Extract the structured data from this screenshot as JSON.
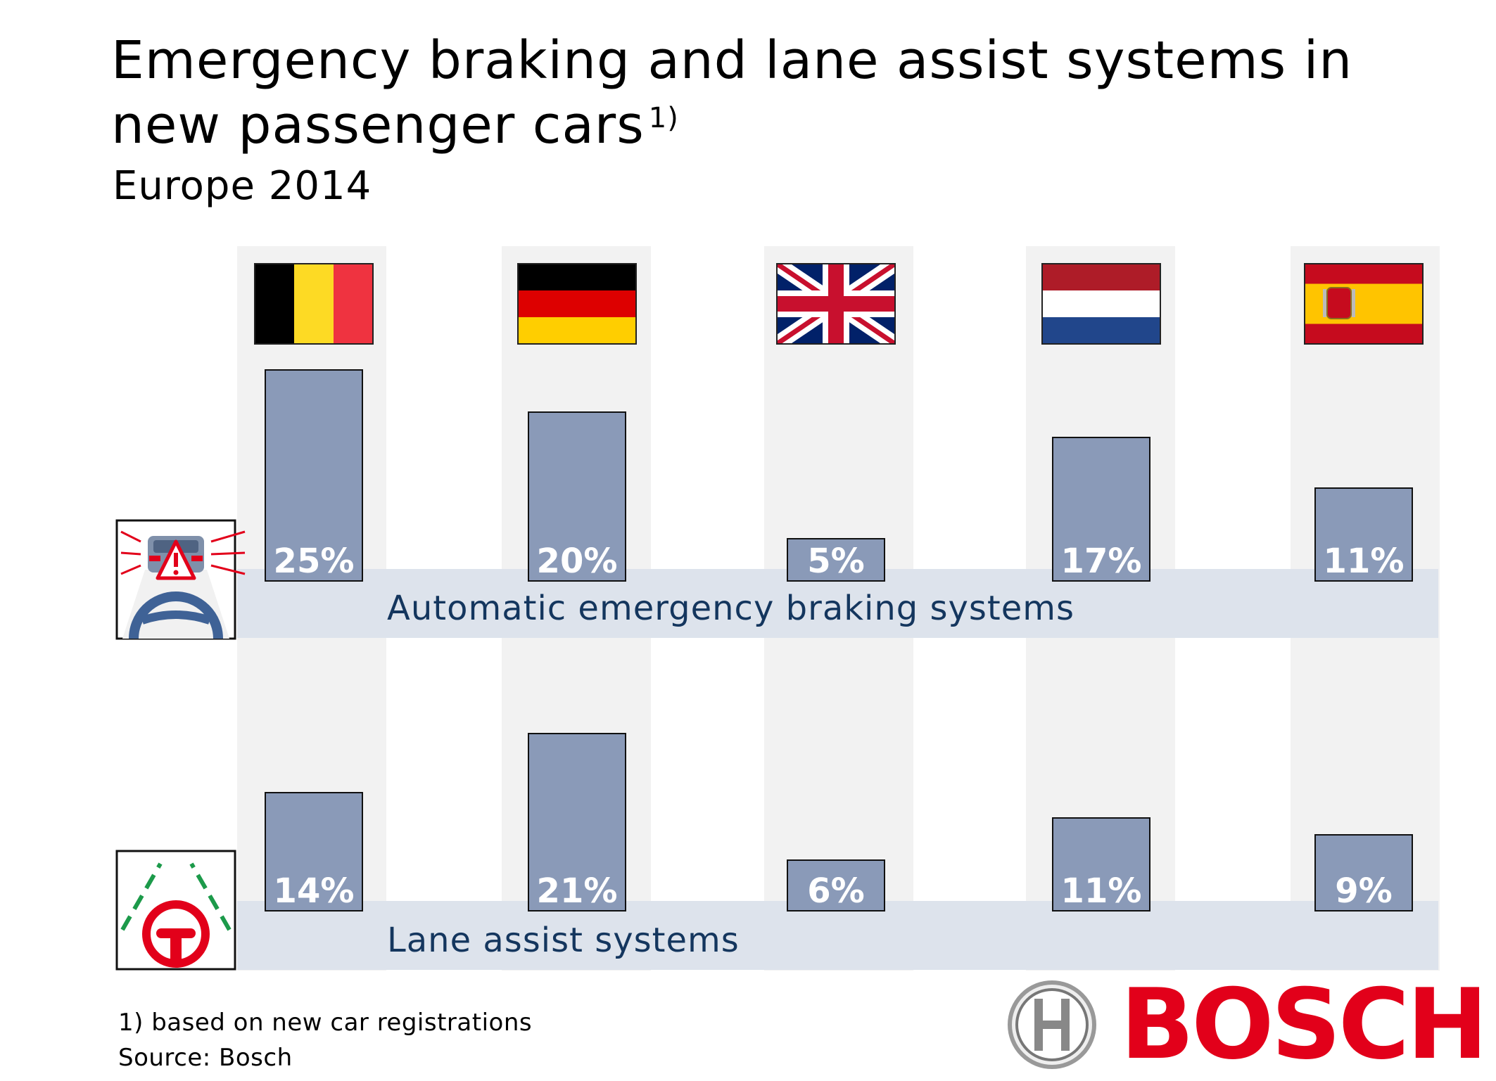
{
  "title": "Emergency braking and lane assist systems in new passenger cars",
  "title_note": "1)",
  "subtitle": "Europe 2014",
  "footnote": "1) based on new car registrations",
  "source": "Source: Bosch",
  "brand": "BOSCH",
  "colors": {
    "bar": "#8a9ab8",
    "column_bg": "#f2f2f2",
    "band": "#dde3ec",
    "label_text": "#14365e",
    "brand_red": "#e2001a"
  },
  "chart_data": {
    "type": "bar",
    "categories": [
      "Belgium",
      "Germany",
      "United Kingdom",
      "Netherlands",
      "Spain"
    ],
    "flags": [
      "belgium-flag",
      "germany-flag",
      "uk-flag",
      "netherlands-flag",
      "spain-flag"
    ],
    "unit": "%",
    "series": [
      {
        "name": "Automatic emergency braking systems",
        "values": [
          25,
          20,
          5,
          17,
          11
        ],
        "labels": [
          "25%",
          "20%",
          "5%",
          "17%",
          "11%"
        ],
        "icon": "emergency-braking-icon"
      },
      {
        "name": "Lane assist systems",
        "values": [
          14,
          21,
          6,
          11,
          9
        ],
        "labels": [
          "14%",
          "21%",
          "6%",
          "11%",
          "9%"
        ],
        "icon": "lane-assist-icon"
      }
    ]
  }
}
